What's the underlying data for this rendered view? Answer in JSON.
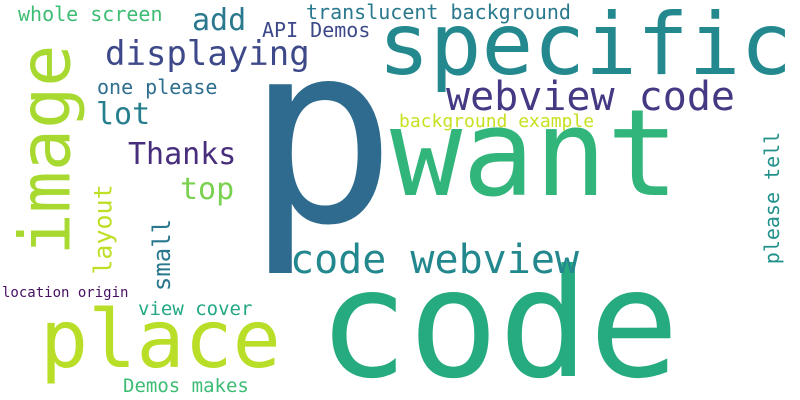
{
  "words": [
    {
      "text": "p",
      "color": "#2e6b8e"
    },
    {
      "text": "code",
      "color": "#25ab7f"
    },
    {
      "text": "want",
      "color": "#31b57a"
    },
    {
      "text": "specific",
      "color": "#23898e"
    },
    {
      "text": "image",
      "color": "#a7d930"
    },
    {
      "text": "place",
      "color": "#b9de28"
    },
    {
      "text": "webview code",
      "color": "#443983"
    },
    {
      "text": "code webview",
      "color": "#23888e"
    },
    {
      "text": "displaying",
      "color": "#3e4989"
    },
    {
      "text": "Thanks",
      "color": "#472d7b"
    },
    {
      "text": "layout",
      "color": "#bddf26"
    },
    {
      "text": "top",
      "color": "#7ad151"
    },
    {
      "text": "add",
      "color": "#2a788e"
    },
    {
      "text": "lot",
      "color": "#277f8e"
    },
    {
      "text": "small",
      "color": "#2a788e"
    },
    {
      "text": "please tell",
      "color": "#21918c"
    },
    {
      "text": "whole screen",
      "color": "#3dbc74"
    },
    {
      "text": "translucent background",
      "color": "#2a788e"
    },
    {
      "text": "API Demos",
      "color": "#3e4989"
    },
    {
      "text": "one please",
      "color": "#2e6e8e"
    },
    {
      "text": "background example",
      "color": "#c8e020"
    },
    {
      "text": "view cover",
      "color": "#22a884"
    },
    {
      "text": "Demos makes",
      "color": "#3dbc74"
    },
    {
      "text": "location origin",
      "color": "#471063"
    }
  ]
}
